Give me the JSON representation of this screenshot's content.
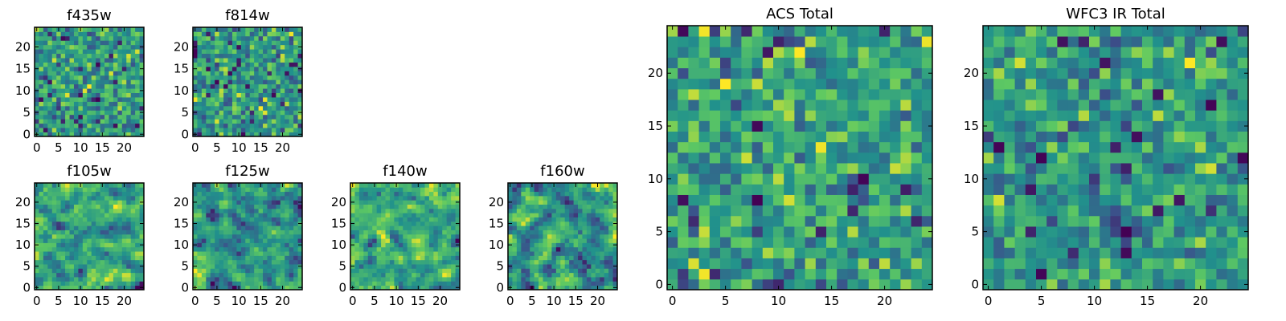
{
  "chart_data": [
    {
      "type": "heatmap",
      "title": "f435w",
      "grid": false,
      "colormap": "viridis",
      "xlim": [
        0,
        24
      ],
      "ylim": [
        0,
        24
      ],
      "xticks": [
        "0",
        "5",
        "10",
        "15",
        "20"
      ],
      "yticks": [
        "0",
        "5",
        "10",
        "15",
        "20"
      ],
      "values": "25x25 noise image (pixel values not readable)"
    },
    {
      "type": "heatmap",
      "title": "f814w",
      "grid": false,
      "colormap": "viridis",
      "xlim": [
        0,
        24
      ],
      "ylim": [
        0,
        24
      ],
      "xticks": [
        "0",
        "5",
        "10",
        "15",
        "20"
      ],
      "yticks": [
        "0",
        "5",
        "10",
        "15",
        "20"
      ],
      "values": "25x25 noise image (pixel values not readable)"
    },
    {
      "type": "heatmap",
      "title": "f105w",
      "grid": false,
      "colormap": "viridis",
      "xlim": [
        0,
        24
      ],
      "ylim": [
        0,
        24
      ],
      "xticks": [
        "0",
        "5",
        "10",
        "15",
        "20"
      ],
      "yticks": [
        "0",
        "5",
        "10",
        "15",
        "20"
      ],
      "values": "25x25 noise image (pixel values not readable)"
    },
    {
      "type": "heatmap",
      "title": "f125w",
      "grid": false,
      "colormap": "viridis",
      "xlim": [
        0,
        24
      ],
      "ylim": [
        0,
        24
      ],
      "xticks": [
        "0",
        "5",
        "10",
        "15",
        "20"
      ],
      "yticks": [
        "0",
        "5",
        "10",
        "15",
        "20"
      ],
      "values": "25x25 noise image (pixel values not readable)"
    },
    {
      "type": "heatmap",
      "title": "f140w",
      "grid": false,
      "colormap": "viridis",
      "xlim": [
        0,
        24
      ],
      "ylim": [
        0,
        24
      ],
      "xticks": [
        "0",
        "5",
        "10",
        "15",
        "20"
      ],
      "yticks": [
        "0",
        "5",
        "10",
        "15",
        "20"
      ],
      "values": "25x25 noise image (pixel values not readable)"
    },
    {
      "type": "heatmap",
      "title": "f160w",
      "grid": false,
      "colormap": "viridis",
      "xlim": [
        0,
        24
      ],
      "ylim": [
        0,
        24
      ],
      "xticks": [
        "0",
        "5",
        "10",
        "15",
        "20"
      ],
      "yticks": [
        "0",
        "5",
        "10",
        "15",
        "20"
      ],
      "values": "25x25 noise image (pixel values not readable)"
    },
    {
      "type": "heatmap",
      "title": "ACS Total",
      "grid": false,
      "colormap": "viridis",
      "xlim": [
        0,
        24
      ],
      "ylim": [
        0,
        24
      ],
      "xticks": [
        "0",
        "5",
        "10",
        "15",
        "20"
      ],
      "yticks": [
        "0",
        "5",
        "10",
        "15",
        "20"
      ],
      "values": "25x25 noise image (pixel values not readable)"
    },
    {
      "type": "heatmap",
      "title": "WFC3 IR Total",
      "grid": false,
      "colormap": "viridis",
      "xlim": [
        0,
        24
      ],
      "ylim": [
        0,
        24
      ],
      "xticks": [
        "0",
        "5",
        "10",
        "15",
        "20"
      ],
      "yticks": [
        "0",
        "5",
        "10",
        "15",
        "20"
      ],
      "values": "25x25 noise image (pixel values not readable)"
    }
  ],
  "colors": {
    "colormap": [
      "#440154",
      "#3b528b",
      "#21918c",
      "#5ec962",
      "#fde725"
    ],
    "frame": "#000000",
    "background": "#ffffff"
  }
}
